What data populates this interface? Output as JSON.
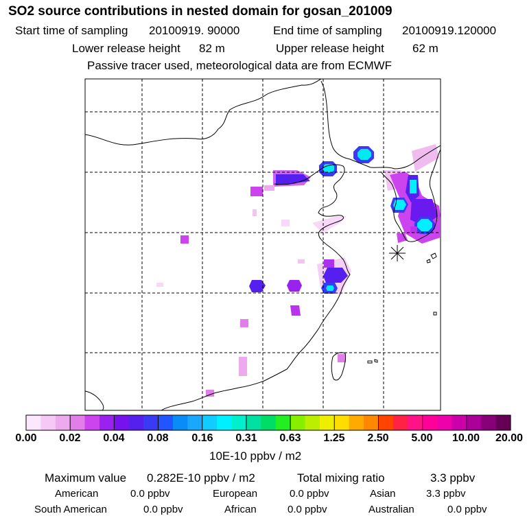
{
  "title": "SO2 source contributions in nested domain for gosan_201009",
  "sampling": {
    "start_label": "Start time of sampling",
    "start_value": "20100919. 90000",
    "end_label": "End time of sampling",
    "end_value": "20100919.120000"
  },
  "release": {
    "lower_label": "Lower release height",
    "lower_value": "82 m",
    "upper_label": "Upper release height",
    "upper_value": "62 m"
  },
  "note": "Passive tracer used, meteorological data are from ECMWF",
  "colors": {
    "bins": [
      "#fce8fc",
      "#f5c8f5",
      "#eeaaee",
      "#e27ee8",
      "#cc44ee",
      "#9922ee",
      "#7711ee",
      "#5520ee",
      "#3a3af5",
      "#2255ff",
      "#0a8cf8",
      "#1aa8ff",
      "#11ccff",
      "#00f0ff",
      "#00f0cc",
      "#00e0a0",
      "#00dd66",
      "#22ee22",
      "#88ee00",
      "#bbee00",
      "#eeee00",
      "#ffdd00",
      "#ffaa00",
      "#ff8800",
      "#ff4400",
      "#ff2244",
      "#ff1188",
      "#ff0099",
      "#ee00aa",
      "#cc00aa",
      "#aa0099",
      "#880077",
      "#660055"
    ]
  },
  "colorbar": {
    "tick_labels": [
      "0.00",
      "0.02",
      "0.04",
      "0.08",
      "0.16",
      "0.31",
      "0.63",
      "1.25",
      "2.50",
      "5.00",
      "10.00",
      "20.00"
    ],
    "unit": "10E-10 ppbv / m2"
  },
  "stats": {
    "max_label": "Maximum value",
    "max_value": "0.282E-10 ppbv / m2",
    "total_label": "Total mixing ratio",
    "total_value": "3.3 ppbv",
    "regions": [
      {
        "name": "American",
        "value": "0.0 ppbv"
      },
      {
        "name": "European",
        "value": "0.0 ppbv"
      },
      {
        "name": "Asian",
        "value": "3.3 ppbv"
      },
      {
        "name": "South American",
        "value": "0.0 ppbv"
      },
      {
        "name": "African",
        "value": "0.0 ppbv"
      },
      {
        "name": "Australian",
        "value": "0.0 ppbv"
      }
    ]
  },
  "map_data": {
    "station": "gosan",
    "plumes": [
      {
        "lon": 126.2,
        "lat": 37.2,
        "level": "very high"
      },
      {
        "lon": 125.5,
        "lat": 36.4,
        "level": "high"
      },
      {
        "lon": 125.8,
        "lat": 38.7,
        "level": "high"
      },
      {
        "lon": 121.6,
        "lat": 41.0,
        "level": "medium"
      },
      {
        "lon": 118.3,
        "lat": 39.6,
        "level": "medium"
      },
      {
        "lon": 125.8,
        "lat": 36.0,
        "level": "medium"
      },
      {
        "lon": 125.0,
        "lat": 37.0,
        "level": "medium"
      },
      {
        "lon": 120.2,
        "lat": 31.7,
        "level": "medium"
      },
      {
        "lon": 119.9,
        "lat": 31.2,
        "level": "medium"
      },
      {
        "lon": 115.6,
        "lat": 31.3,
        "level": "medium"
      },
      {
        "lon": 117.7,
        "lat": 31.2,
        "level": "medium"
      },
      {
        "lon": 117.7,
        "lat": 29.9,
        "level": "low"
      },
      {
        "lon": 116.8,
        "lat": 38.7,
        "level": "low"
      },
      {
        "lon": 126.6,
        "lat": 39.7,
        "level": "low"
      },
      {
        "lon": 109.7,
        "lat": 34.4,
        "level": "low"
      }
    ]
  }
}
